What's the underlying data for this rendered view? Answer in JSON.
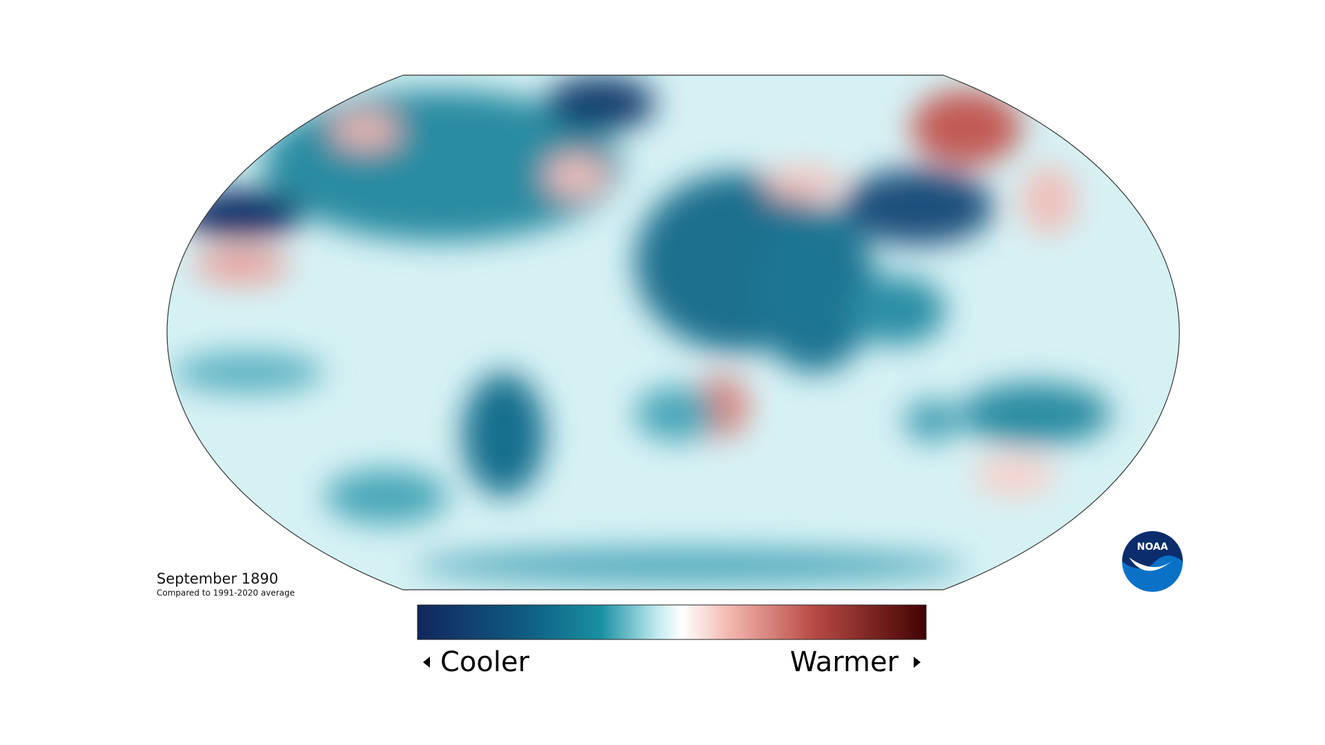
{
  "map": {
    "title": "September 1890",
    "subtitle": "Compared to 1991-2020 average",
    "legend": {
      "low_label": "Cooler",
      "high_label": "Warmer"
    },
    "logo": "NOAA"
  }
}
